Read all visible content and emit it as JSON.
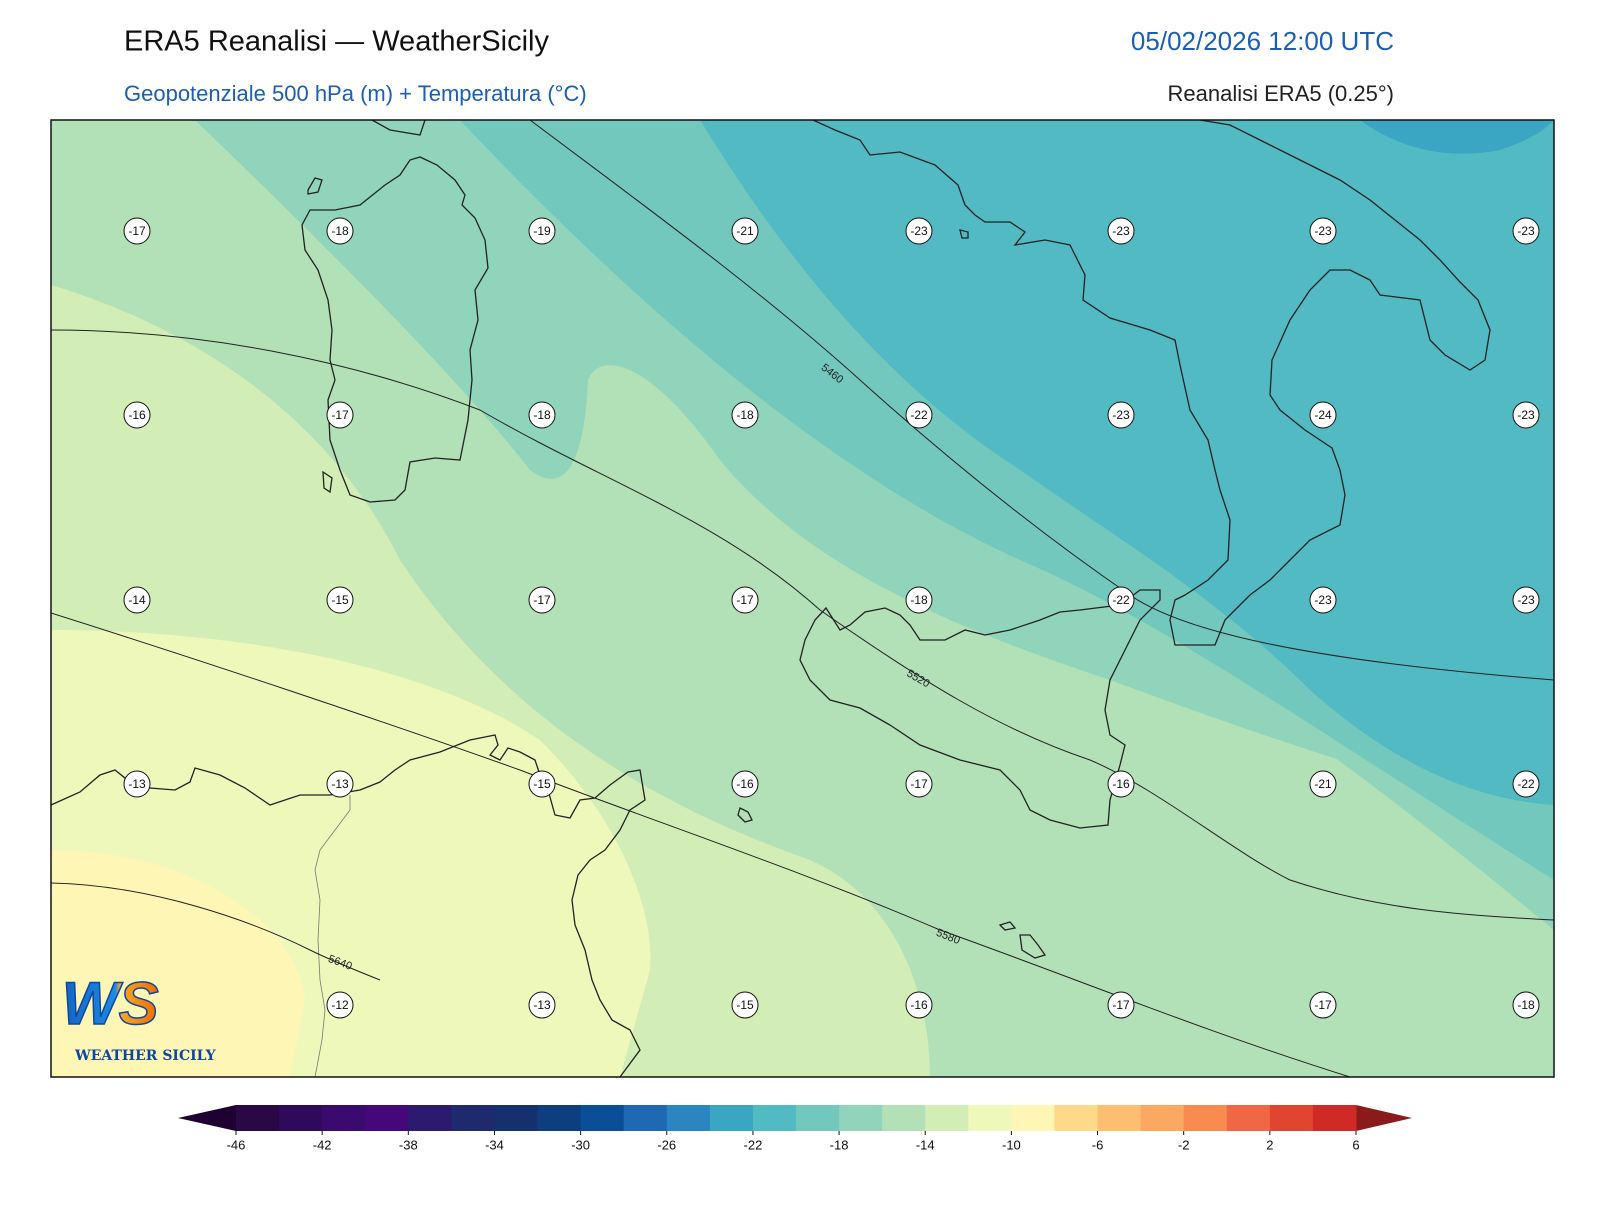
{
  "header": {
    "title": "ERA5 Reanalisi — WeatherSicily",
    "datetime": "05/02/2026 12:00 UTC",
    "subtitle": "Geopotenziale 500 hPa (m) + Temperatura (°C)",
    "source": "Reanalisi ERA5 (0.25°)"
  },
  "map": {
    "station_rows": [
      [
        -17,
        -18,
        -19,
        -21,
        -23,
        -23,
        -23,
        -23
      ],
      [
        -16,
        -17,
        -18,
        -18,
        -22,
        -23,
        -24,
        -23
      ],
      [
        -14,
        -15,
        -17,
        -17,
        -18,
        -22,
        -23,
        -23
      ],
      [
        -13,
        -13,
        -15,
        -16,
        -17,
        -16,
        -21,
        -22
      ],
      [
        -12,
        -13,
        -15,
        -16,
        -17,
        -17,
        -18
      ]
    ],
    "contour_labels": [
      5460,
      5520,
      5580,
      5640
    ]
  },
  "logo": {
    "mark": "WS",
    "text": "WEATHER SICILY"
  },
  "colorbar": {
    "ticks": [
      -46,
      -42,
      -38,
      -34,
      -30,
      -26,
      -22,
      -18,
      -14,
      -10,
      -6,
      -2,
      2,
      6
    ],
    "colors": [
      "#2a0845",
      "#300a5a",
      "#3a0a6e",
      "#45087a",
      "#2b1a6e",
      "#1f2a6e",
      "#14306e",
      "#0d3f80",
      "#0b4e98",
      "#1f68b2",
      "#2b85c0",
      "#3aa6c4",
      "#52bac2",
      "#72c8bd",
      "#8fd4bb",
      "#b2e0b7",
      "#d2edb6",
      "#eef8bb",
      "#fef6b5",
      "#fed98a",
      "#fdbe72",
      "#fca862",
      "#f98b50",
      "#f06843",
      "#e04530",
      "#cf2a26"
    ]
  }
}
